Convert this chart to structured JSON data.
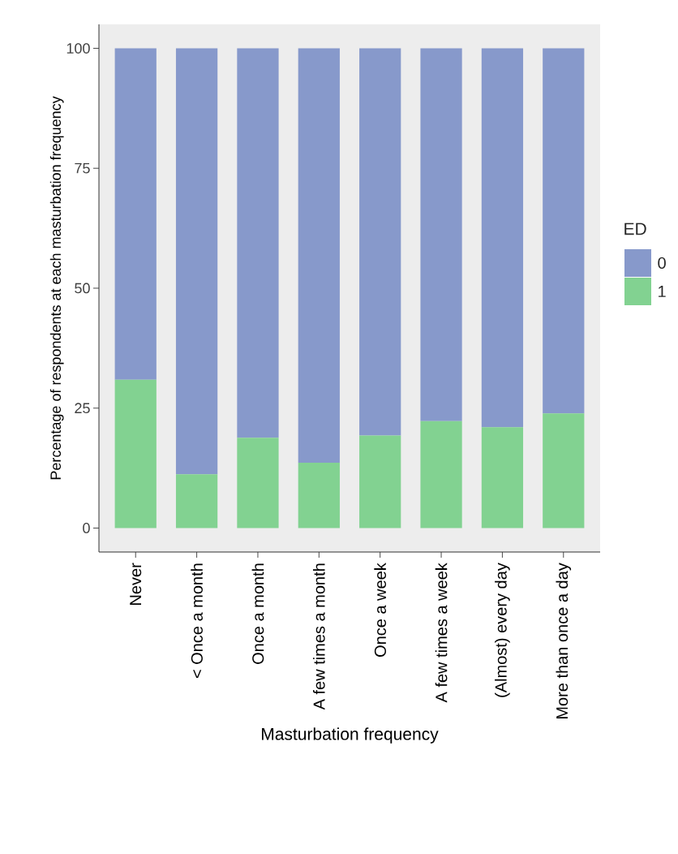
{
  "chart_data": {
    "type": "bar",
    "stacked": true,
    "xlabel": "Masturbation frequency",
    "ylabel": "Percentage of respondents at each masturbation frequency",
    "legend_title": "ED",
    "legend": "right",
    "categories": [
      "Never",
      "< Once a month",
      "Once a month",
      "A few times a month",
      "Once a week",
      "A few times a week",
      "(Almost) every day",
      "More than once a day"
    ],
    "series": [
      {
        "name": "1",
        "color": "#82d291",
        "values": [
          30.9,
          11.2,
          18.8,
          13.6,
          19.3,
          22.3,
          21.0,
          23.9
        ]
      },
      {
        "name": "0",
        "color": "#8799cb",
        "values": [
          69.1,
          88.8,
          81.2,
          86.4,
          80.7,
          77.7,
          79.0,
          76.1
        ]
      }
    ],
    "ylim": [
      -5,
      105
    ],
    "yticks": [
      0,
      25,
      50,
      75,
      100
    ],
    "grid": false
  }
}
